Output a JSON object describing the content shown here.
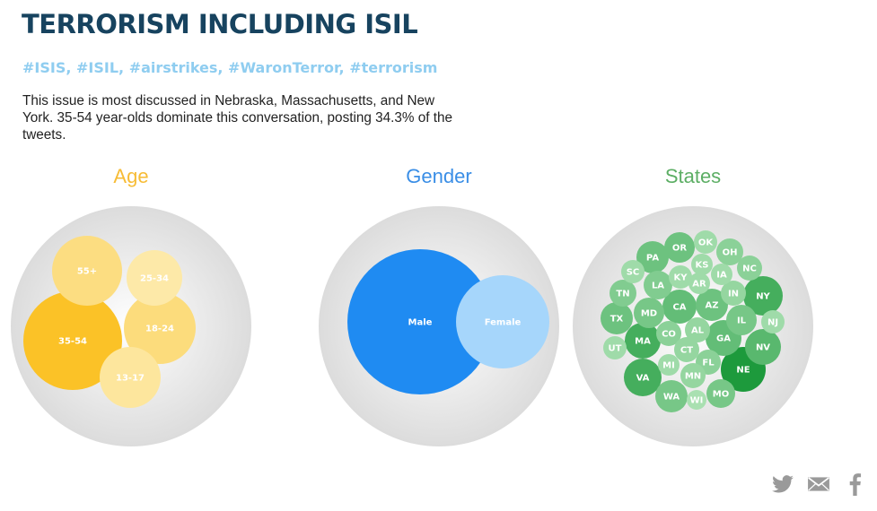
{
  "header": {
    "title": "TERRORISM INCLUDING ISIL",
    "hashtags": "#ISIS, #ISIL, #airstrikes, #WaronTerror, #terrorism",
    "summary": "This issue is most discussed in Nebraska, Massachusetts, and New York. 35-54 year-olds dominate this conversation, posting 34.3% of the tweets."
  },
  "colors": {
    "title": "#17435f",
    "hashtags": "#8fcdf0",
    "age": "#f7bc36",
    "gender": "#3a8ee6",
    "states": "#5cae64",
    "disc": "#dedede",
    "share_icons": "#9a9a9a"
  },
  "chart_data": [
    {
      "type": "bubble",
      "title": "Age",
      "color_scale": [
        "#fde9a8",
        "#fbc227"
      ],
      "bubbles": [
        {
          "label": "35-54",
          "value": 34.3
        },
        {
          "label": "55+",
          "value": 18
        },
        {
          "label": "18-24",
          "value": 19
        },
        {
          "label": "25-34",
          "value": 11
        },
        {
          "label": "13-17",
          "value": 13
        }
      ]
    },
    {
      "type": "bubble",
      "title": "Gender",
      "bubbles": [
        {
          "label": "Male",
          "value": 69,
          "color": "#1f8bf2"
        },
        {
          "label": "Female",
          "value": 31,
          "color": "#a6d6fb"
        }
      ]
    },
    {
      "type": "bubble",
      "title": "States",
      "color_scale": [
        "#a9e0b1",
        "#1d9a3c"
      ],
      "bubbles": [
        {
          "label": "NE",
          "value": 10
        },
        {
          "label": "MA",
          "value": 8
        },
        {
          "label": "NY",
          "value": 8
        },
        {
          "label": "VA",
          "value": 8
        },
        {
          "label": "NV",
          "value": 7
        },
        {
          "label": "GA",
          "value": 6.5
        },
        {
          "label": "CA",
          "value": 6.5
        },
        {
          "label": "AZ",
          "value": 6
        },
        {
          "label": "OR",
          "value": 6
        },
        {
          "label": "PA",
          "value": 6
        },
        {
          "label": "TX",
          "value": 6
        },
        {
          "label": "MD",
          "value": 5.5
        },
        {
          "label": "WA",
          "value": 5.5
        },
        {
          "label": "IL",
          "value": 5.5
        },
        {
          "label": "MO",
          "value": 5.5
        },
        {
          "label": "LA",
          "value": 5
        },
        {
          "label": "TN",
          "value": 5
        },
        {
          "label": "OH",
          "value": 4.5
        },
        {
          "label": "NC",
          "value": 4.5
        },
        {
          "label": "CO",
          "value": 4.5
        },
        {
          "label": "FL",
          "value": 4.5
        },
        {
          "label": "IN",
          "value": 4
        },
        {
          "label": "AL",
          "value": 4
        },
        {
          "label": "CT",
          "value": 4
        },
        {
          "label": "MN",
          "value": 4
        },
        {
          "label": "OK",
          "value": 3.5
        },
        {
          "label": "KY",
          "value": 3.5
        },
        {
          "label": "KS",
          "value": 3.5
        },
        {
          "label": "SC",
          "value": 3.5
        },
        {
          "label": "AR",
          "value": 3.5
        },
        {
          "label": "IA",
          "value": 3.5
        },
        {
          "label": "NJ",
          "value": 3.5
        },
        {
          "label": "MI",
          "value": 3.5
        },
        {
          "label": "UT",
          "value": 3.5
        },
        {
          "label": "WI",
          "value": 3
        }
      ]
    }
  ],
  "share": [
    {
      "name": "twitter-icon"
    },
    {
      "name": "email-icon"
    },
    {
      "name": "facebook-icon"
    }
  ]
}
